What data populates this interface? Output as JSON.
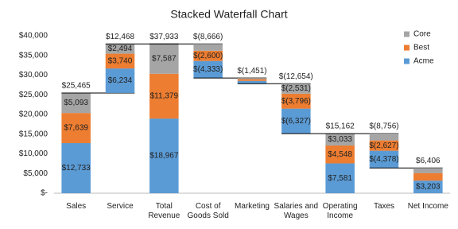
{
  "chart_data": {
    "type": "stacked-waterfall",
    "title": "Stacked Waterfall Chart",
    "categories": [
      "Sales",
      "Service",
      "Total Revenue",
      "Cost of Goods Sold",
      "Marketing",
      "Salaries and Wages",
      "Operating Income",
      "Taxes",
      "Net Income"
    ],
    "series": [
      {
        "name": "Acme",
        "color": "#5b9bd5",
        "values": [
          12733,
          6234,
          18967,
          -4333,
          -725,
          -6327,
          7581,
          -4378,
          3203
        ],
        "value_labels": [
          "$12,733",
          "$6,234",
          "$18,967",
          "$(4,333)",
          null,
          "$(6,327)",
          "$7,581",
          "$(4,378)",
          "$3,203"
        ]
      },
      {
        "name": "Best",
        "color": "#ed7d31",
        "values": [
          7639,
          3740,
          11379,
          -2600,
          -435,
          -3796,
          4548,
          -2627,
          1922
        ],
        "value_labels": [
          "$7,639",
          "$3,740",
          "$11,379",
          "$(2,600)",
          null,
          "$(3,796)",
          "$4,548",
          "$(2,627)",
          null
        ]
      },
      {
        "name": "Core",
        "color": "#a5a5a5",
        "values": [
          5093,
          2494,
          7587,
          -1733,
          -291,
          -2531,
          3033,
          -1751,
          1281
        ],
        "value_labels": [
          "$5,093",
          "$2,494",
          "$7,587",
          null,
          null,
          "$(2,531)",
          "$3,033",
          null,
          null
        ]
      }
    ],
    "totals": [
      25465,
      12468,
      37933,
      -8666,
      -1451,
      -12654,
      15162,
      -8756,
      6406
    ],
    "totals_labels": [
      "$25,465",
      "$12,468",
      "$37,933",
      "$(8,666)",
      "$(1,451)",
      "$(12,654)",
      "$15,162",
      "$(8,756)",
      "$6,406"
    ],
    "ylim": [
      0,
      40000
    ],
    "yticks": [
      {
        "value": 0,
        "label": "$-"
      },
      {
        "value": 5000,
        "label": "$5,000"
      },
      {
        "value": 10000,
        "label": "$10,000"
      },
      {
        "value": 15000,
        "label": "$15,000"
      },
      {
        "value": 20000,
        "label": "$20,000"
      },
      {
        "value": 25000,
        "label": "$25,000"
      },
      {
        "value": 30000,
        "label": "$30,000"
      },
      {
        "value": 35000,
        "label": "$35,000"
      },
      {
        "value": 40000,
        "label": "$40,000"
      }
    ],
    "grid": false,
    "legend": "top-right"
  }
}
